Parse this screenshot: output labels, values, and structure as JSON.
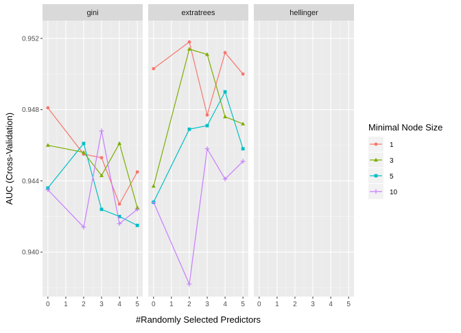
{
  "chart_data": {
    "type": "line",
    "facets": [
      "gini",
      "extratrees",
      "hellinger"
    ],
    "x_ticks": [
      0,
      1,
      2,
      3,
      4,
      5
    ],
    "y_ticks": [
      "0.940",
      "0.944",
      "0.948",
      "0.952"
    ],
    "xlim": [
      -0.3,
      5.3
    ],
    "ylim": [
      0.9375,
      0.953
    ],
    "xlabel": "#Randomly Selected Predictors",
    "ylabel": "AUC (Cross-Validation)",
    "legend_title": "Minimal Node Size",
    "legend_position": "right",
    "grid": true,
    "series": [
      {
        "name": "1",
        "color": "#F8766D",
        "marker": "circle",
        "data": {
          "gini": [
            [
              0,
              0.9481
            ],
            [
              2,
              0.9455
            ],
            [
              3,
              0.9453
            ],
            [
              4,
              0.9427
            ],
            [
              5,
              0.9445
            ]
          ],
          "extratrees": [
            [
              0,
              0.9503
            ],
            [
              2,
              0.9518
            ],
            [
              3,
              0.9477
            ],
            [
              4,
              0.9512
            ],
            [
              5,
              0.95
            ]
          ]
        }
      },
      {
        "name": "3",
        "color": "#7CAE00",
        "marker": "triangle",
        "data": {
          "gini": [
            [
              0,
              0.946
            ],
            [
              2,
              0.9456
            ],
            [
              3,
              0.9443
            ],
            [
              4,
              0.9461
            ],
            [
              5,
              0.9425
            ]
          ],
          "extratrees": [
            [
              0,
              0.9437
            ],
            [
              2,
              0.9514
            ],
            [
              3,
              0.9511
            ],
            [
              4,
              0.9476
            ],
            [
              5,
              0.9472
            ]
          ]
        }
      },
      {
        "name": "5",
        "color": "#00BFC4",
        "marker": "square",
        "data": {
          "gini": [
            [
              0,
              0.9436
            ],
            [
              2,
              0.9461
            ],
            [
              3,
              0.9424
            ],
            [
              4,
              0.942
            ],
            [
              5,
              0.9415
            ]
          ],
          "extratrees": [
            [
              0,
              0.9428
            ],
            [
              2,
              0.9469
            ],
            [
              3,
              0.9471
            ],
            [
              4,
              0.949
            ],
            [
              5,
              0.9458
            ]
          ]
        }
      },
      {
        "name": "10",
        "color": "#C77CFF",
        "marker": "plus",
        "data": {
          "gini": [
            [
              0,
              0.9435
            ],
            [
              2,
              0.9414
            ],
            [
              3,
              0.9468
            ],
            [
              4,
              0.9416
            ],
            [
              5,
              0.9424
            ]
          ],
          "extratrees": [
            [
              0,
              0.9428
            ],
            [
              2,
              0.9382
            ],
            [
              3,
              0.9458
            ],
            [
              4,
              0.9441
            ],
            [
              5,
              0.9451
            ]
          ]
        }
      }
    ]
  }
}
